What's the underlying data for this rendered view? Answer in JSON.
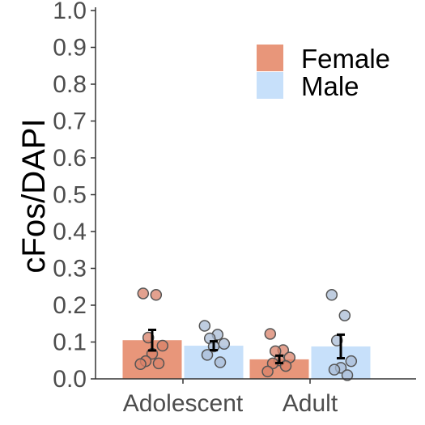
{
  "chart_data": {
    "type": "bar",
    "title": "",
    "xlabel": "",
    "ylabel": "cFos/DAPI",
    "ylim": [
      0,
      1.0
    ],
    "yticks": [
      "0.0",
      "0.1",
      "0.2",
      "0.3",
      "0.4",
      "0.5",
      "0.6",
      "0.7",
      "0.8",
      "0.9",
      "1.0"
    ],
    "grid": false,
    "legend_position": "top-right",
    "categories": [
      "Adolescent",
      "Adult"
    ],
    "series": [
      {
        "name": "Female",
        "color": "#E8967A",
        "point_color": "#D9826A",
        "values": [
          0.105,
          0.053
        ],
        "errors": [
          0.028,
          0.01
        ],
        "points": [
          [
            0.232,
            0.228,
            0.112,
            0.09,
            0.068,
            0.048,
            0.042,
            0.04
          ],
          [
            0.122,
            0.078,
            0.075,
            0.058,
            0.05,
            0.042,
            0.035,
            0.02
          ]
        ]
      },
      {
        "name": "Male",
        "color": "#C7E0FA",
        "point_color": "#A9BCD6",
        "values": [
          0.09,
          0.088
        ],
        "errors": [
          0.012,
          0.032
        ],
        "points": [
          [
            0.144,
            0.12,
            0.11,
            0.095,
            0.088,
            0.065,
            0.045
          ],
          [
            0.228,
            0.172,
            0.104,
            0.048,
            0.03,
            0.025,
            0.01
          ]
        ]
      }
    ]
  }
}
